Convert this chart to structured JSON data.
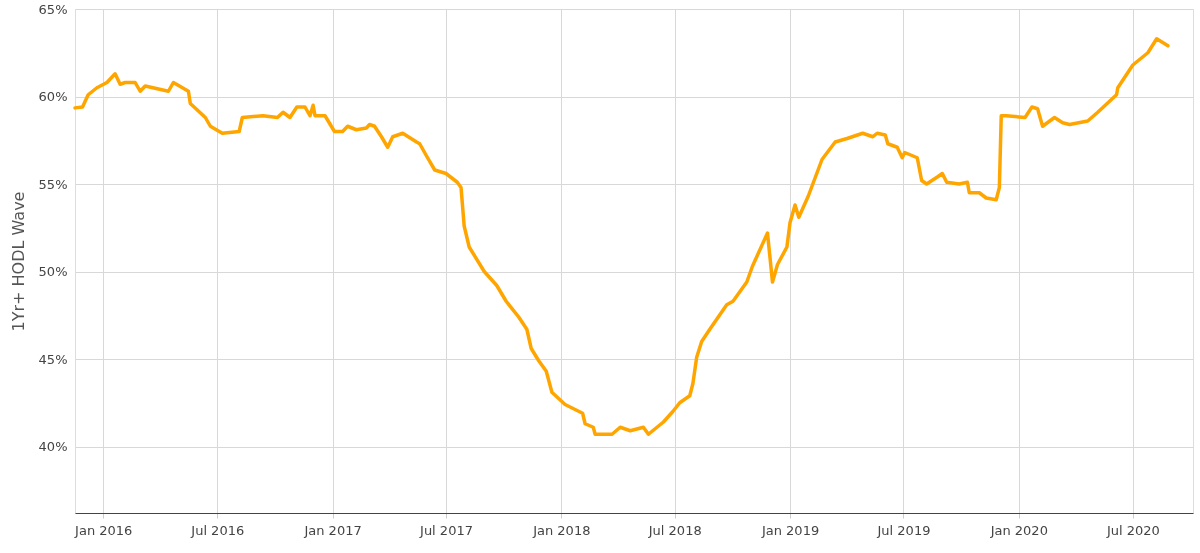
{
  "chart_data": {
    "type": "line",
    "ylabel": "1Yr+ HODL Wave",
    "grid": true,
    "marker": "none",
    "line_style": "solid",
    "xlim": [
      "2015-11-17",
      "2020-10-05"
    ],
    "ylim": [
      36.2,
      65
    ],
    "xticks": [
      {
        "value": "2016-01-01",
        "label": "Jan 2016"
      },
      {
        "value": "2016-07-01",
        "label": "Jul 2016"
      },
      {
        "value": "2017-01-01",
        "label": "Jan 2017"
      },
      {
        "value": "2017-07-01",
        "label": "Jul 2017"
      },
      {
        "value": "2018-01-01",
        "label": "Jan 2018"
      },
      {
        "value": "2018-07-01",
        "label": "Jul 2018"
      },
      {
        "value": "2019-01-01",
        "label": "Jan 2019"
      },
      {
        "value": "2019-07-01",
        "label": "Jul 2019"
      },
      {
        "value": "2020-01-01",
        "label": "Jan 2020"
      },
      {
        "value": "2020-07-01",
        "label": "Jul 2020"
      }
    ],
    "yticks": [
      {
        "value": 40,
        "label": "40%"
      },
      {
        "value": 45,
        "label": "45%"
      },
      {
        "value": 50,
        "label": "50%"
      },
      {
        "value": 55,
        "label": "55%"
      },
      {
        "value": 60,
        "label": "60%"
      },
      {
        "value": 65,
        "label": "65%"
      }
    ],
    "x": [
      "2015-11-17",
      "2015-11-29",
      "2015-12-08",
      "2015-12-22",
      "2016-01-07",
      "2016-01-20",
      "2016-01-28",
      "2016-02-05",
      "2016-02-21",
      "2016-02-29",
      "2016-03-08",
      "2016-04-14",
      "2016-04-22",
      "2016-05-16",
      "2016-05-19",
      "2016-06-12",
      "2016-06-20",
      "2016-07-09",
      "2016-08-05",
      "2016-08-10",
      "2016-09-12",
      "2016-10-05",
      "2016-10-14",
      "2016-10-25",
      "2016-11-05",
      "2016-11-18",
      "2016-11-26",
      "2016-12-01",
      "2016-12-04",
      "2016-12-20",
      "2017-01-04",
      "2017-01-17",
      "2017-01-25",
      "2017-02-08",
      "2017-02-24",
      "2017-03-01",
      "2017-03-09",
      "2017-03-20",
      "2017-03-30",
      "2017-04-07",
      "2017-04-23",
      "2017-05-15",
      "2017-05-20",
      "2017-05-31",
      "2017-06-13",
      "2017-07-01",
      "2017-07-19",
      "2017-07-25",
      "2017-07-30",
      "2017-08-07",
      "2017-08-31",
      "2017-09-20",
      "2017-10-05",
      "2017-10-25",
      "2017-11-07",
      "2017-11-14",
      "2017-11-26",
      "2017-12-08",
      "2017-12-17",
      "2018-01-07",
      "2018-02-04",
      "2018-02-08",
      "2018-02-21",
      "2018-02-24",
      "2018-03-23",
      "2018-04-05",
      "2018-04-21",
      "2018-05-12",
      "2018-05-20",
      "2018-06-13",
      "2018-06-28",
      "2018-07-09",
      "2018-07-25",
      "2018-07-30",
      "2018-08-05",
      "2018-08-13",
      "2018-08-26",
      "2018-09-22",
      "2018-10-02",
      "2018-10-24",
      "2018-11-02",
      "2018-11-26",
      "2018-12-04",
      "2018-12-12",
      "2018-12-27",
      "2019-01-01",
      "2019-01-09",
      "2019-01-15",
      "2019-01-30",
      "2019-02-21",
      "2019-03-14",
      "2019-04-02",
      "2019-04-27",
      "2019-05-13",
      "2019-05-20",
      "2019-06-02",
      "2019-06-06",
      "2019-06-21",
      "2019-06-29",
      "2019-07-03",
      "2019-07-23",
      "2019-07-30",
      "2019-08-07",
      "2019-08-24",
      "2019-09-01",
      "2019-09-08",
      "2019-09-28",
      "2019-10-11",
      "2019-10-14",
      "2019-10-30",
      "2019-11-10",
      "2019-11-26",
      "2019-12-01",
      "2019-12-04",
      "2019-12-12",
      "2020-01-11",
      "2020-01-22",
      "2020-01-31",
      "2020-02-08",
      "2020-02-27",
      "2020-03-11",
      "2020-03-22",
      "2020-04-20",
      "2020-05-06",
      "2020-06-05",
      "2020-06-07",
      "2020-07-01",
      "2020-07-25",
      "2020-08-08",
      "2020-08-26"
    ],
    "series": [
      {
        "color": "#ffa500",
        "values": [
          59.35,
          59.4,
          60.1,
          60.5,
          60.8,
          61.3,
          60.7,
          60.8,
          60.8,
          60.3,
          60.6,
          60.3,
          60.8,
          60.3,
          59.6,
          58.8,
          58.3,
          57.9,
          58.0,
          58.8,
          58.9,
          58.8,
          59.1,
          58.8,
          59.4,
          59.4,
          58.9,
          59.5,
          58.9,
          58.9,
          58.0,
          58.0,
          58.3,
          58.1,
          58.2,
          58.4,
          58.3,
          57.7,
          57.1,
          57.7,
          57.9,
          57.4,
          57.3,
          56.6,
          55.8,
          55.6,
          55.1,
          54.8,
          52.6,
          51.4,
          50.0,
          49.2,
          48.3,
          47.4,
          46.7,
          45.6,
          44.9,
          44.3,
          43.1,
          42.4,
          41.9,
          41.3,
          41.1,
          40.7,
          40.7,
          41.1,
          40.9,
          41.1,
          40.7,
          41.4,
          42.0,
          42.5,
          42.9,
          43.6,
          45.1,
          46.0,
          46.7,
          48.1,
          48.3,
          49.4,
          50.3,
          52.2,
          49.4,
          50.4,
          51.4,
          52.8,
          53.8,
          53.1,
          54.3,
          56.4,
          57.4,
          57.6,
          57.9,
          57.7,
          57.9,
          57.8,
          57.3,
          57.1,
          56.5,
          56.8,
          56.5,
          55.2,
          55.0,
          55.4,
          55.6,
          55.1,
          55.0,
          55.1,
          54.5,
          54.5,
          54.2,
          54.1,
          54.8,
          58.9,
          58.9,
          58.8,
          59.4,
          59.3,
          58.3,
          58.8,
          58.5,
          58.4,
          58.6,
          59.1,
          60.1,
          60.5,
          61.8,
          62.5,
          63.3,
          62.9
        ]
      }
    ]
  }
}
